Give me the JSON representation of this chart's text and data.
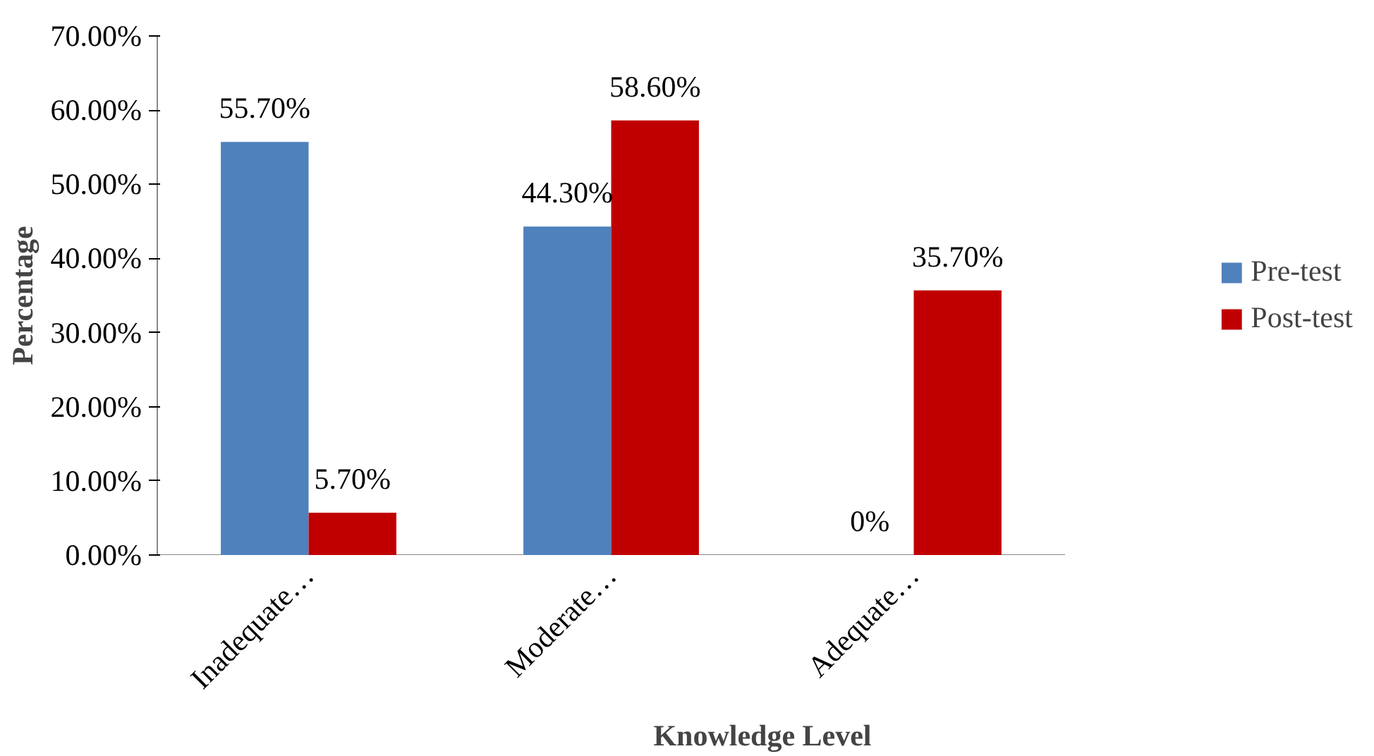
{
  "chart_data": {
    "type": "bar",
    "xlabel": "Knowledge Level",
    "ylabel": "Percentage",
    "categories": [
      "Inadequate…",
      "Moderate…",
      "Adequate…"
    ],
    "series": [
      {
        "name": "Pre-test",
        "color": "#4f81bd",
        "values": [
          55.7,
          44.3,
          0
        ],
        "value_labels": [
          "55.70%",
          "44.30%",
          "0%"
        ]
      },
      {
        "name": "Post-test",
        "color": "#c00000",
        "values": [
          5.7,
          58.6,
          35.7
        ],
        "value_labels": [
          "5.70%",
          "58.60%",
          "35.70%"
        ]
      }
    ],
    "ylim": [
      0,
      70
    ],
    "yticks": [
      {
        "value": 0,
        "label": "0.00%"
      },
      {
        "value": 10,
        "label": "10.00%"
      },
      {
        "value": 20,
        "label": "20.00%"
      },
      {
        "value": 30,
        "label": "30.00%"
      },
      {
        "value": 40,
        "label": "40.00%"
      },
      {
        "value": 50,
        "label": "50.00%"
      },
      {
        "value": 60,
        "label": "60.00%"
      },
      {
        "value": 70,
        "label": "70.00%"
      }
    ],
    "grid": false,
    "legend": "right"
  }
}
